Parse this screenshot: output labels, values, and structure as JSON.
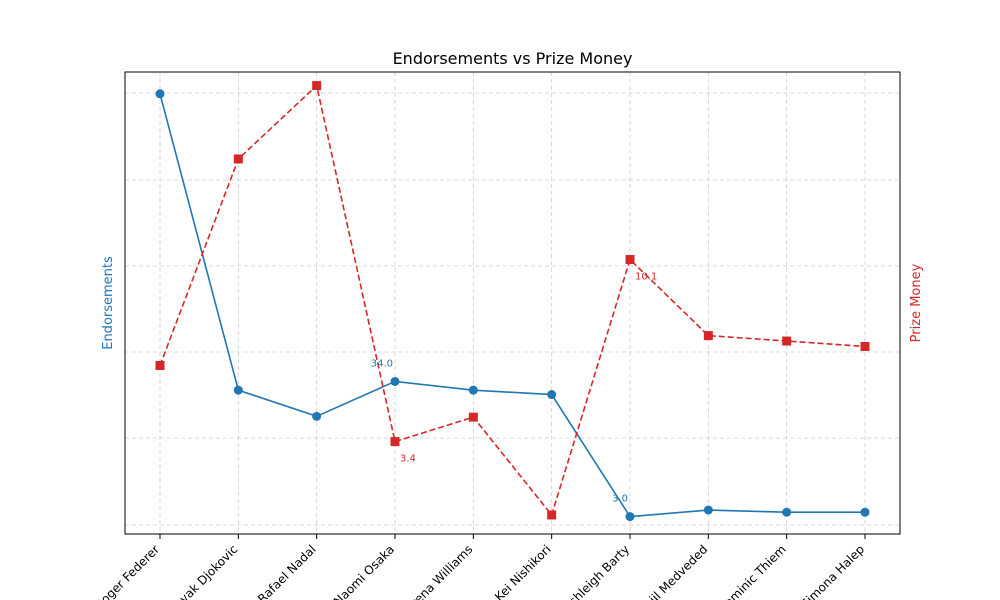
{
  "chart_data": {
    "type": "line",
    "title": "Endorsements vs Prize Money",
    "categories": [
      "Roger Federer",
      "Novak Djokovic",
      "Rafael Nadal",
      "Naomi Osaka",
      "Serena Williams",
      "Kei Nishikori",
      "Ashleigh Barty",
      "Daniil Medveded",
      "Dominic Thiem",
      "Simona Halep"
    ],
    "ylabel_left": "Endorsements",
    "ylabel_right": "Prize Money",
    "grid": true,
    "series": [
      {
        "name": "Endorsements",
        "axis": "left",
        "color": "#1f77b4",
        "marker": "circle",
        "line_style": "solid",
        "values": [
          100,
          32,
          26,
          34,
          32,
          31,
          3,
          4.5,
          4,
          4
        ],
        "ylim": [
          -1,
          105
        ],
        "annotations": [
          {
            "index": 3,
            "text": "34.0"
          },
          {
            "index": 6,
            "text": "3.0"
          }
        ]
      },
      {
        "name": "Prize Money",
        "axis": "right",
        "color": "#d62728",
        "marker": "square",
        "line_style": "dashed",
        "values": [
          6.2,
          13.8,
          16.5,
          3.4,
          4.3,
          0.7,
          10.1,
          7.3,
          7.1,
          6.9
        ],
        "ylim": [
          0.0,
          17.0
        ],
        "annotations": [
          {
            "index": 3,
            "text": "3.4"
          },
          {
            "index": 6,
            "text": "10.1"
          }
        ]
      }
    ]
  }
}
